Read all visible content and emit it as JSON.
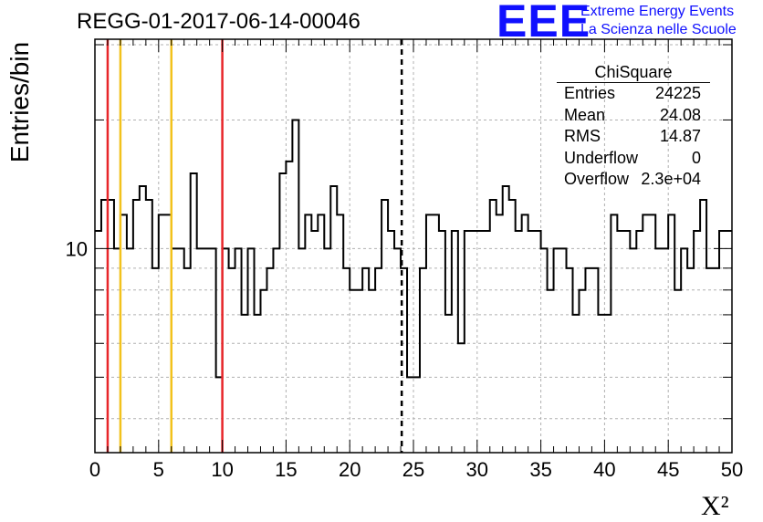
{
  "header": {
    "title": "REGG-01-2017-06-14-00046",
    "logo": "EEE",
    "logo_line1": "Extreme Energy Events",
    "logo_line2": "La Scienza nelle Scuole"
  },
  "stats_box": {
    "name": "ChiSquare",
    "rows": [
      {
        "key": "Entries",
        "value": "24225"
      },
      {
        "key": "Mean",
        "value": "24.08"
      },
      {
        "key": "RMS",
        "value": "14.87"
      },
      {
        "key": "Underflow",
        "value": "0"
      },
      {
        "key": "Overflow",
        "value": "2.3e+04"
      }
    ]
  },
  "colors": {
    "red": "#e8262a",
    "yellow": "#f2c21c",
    "black": "#000000",
    "grid": "#b0b0b0"
  },
  "chart_data": {
    "type": "histogram",
    "xlabel": "X²",
    "ylabel": "Entries/bin",
    "xlim": [
      0,
      50
    ],
    "ylog": true,
    "ylim": [
      3.33,
      30.9
    ],
    "grid": true,
    "xticks": [
      0,
      5,
      10,
      15,
      20,
      25,
      30,
      35,
      40,
      45,
      50
    ],
    "ytick_labels": [
      {
        "value": 10,
        "label": "10"
      }
    ],
    "bin_width": 0.5,
    "values": [
      11,
      13,
      13,
      10,
      12,
      10,
      13,
      14,
      13,
      9,
      12,
      12,
      10,
      10,
      9,
      15,
      10,
      10,
      10,
      5,
      10,
      9,
      10,
      7,
      10,
      7,
      8,
      9,
      10,
      15,
      16,
      20,
      10,
      12,
      11,
      12,
      10,
      14,
      12,
      9,
      8,
      8,
      9,
      8,
      9,
      13,
      11,
      10,
      9,
      5,
      5,
      9,
      12,
      12,
      11,
      7,
      11,
      6,
      11,
      11,
      11,
      11,
      13,
      12,
      14,
      13,
      11,
      12,
      11,
      11,
      10,
      8,
      10,
      10,
      9,
      7,
      8,
      9,
      9,
      7,
      7,
      12,
      11,
      11,
      10,
      11,
      12,
      12,
      10,
      10,
      12,
      8,
      10,
      9,
      11,
      13,
      9,
      9,
      11,
      11
    ],
    "vlines": [
      {
        "x": 1,
        "color": "red",
        "style": "solid"
      },
      {
        "x": 2,
        "color": "yellow",
        "style": "solid"
      },
      {
        "x": 6,
        "color": "yellow",
        "style": "solid"
      },
      {
        "x": 10,
        "color": "red",
        "style": "solid"
      },
      {
        "x": 24.08,
        "color": "black",
        "style": "dashed"
      }
    ]
  }
}
